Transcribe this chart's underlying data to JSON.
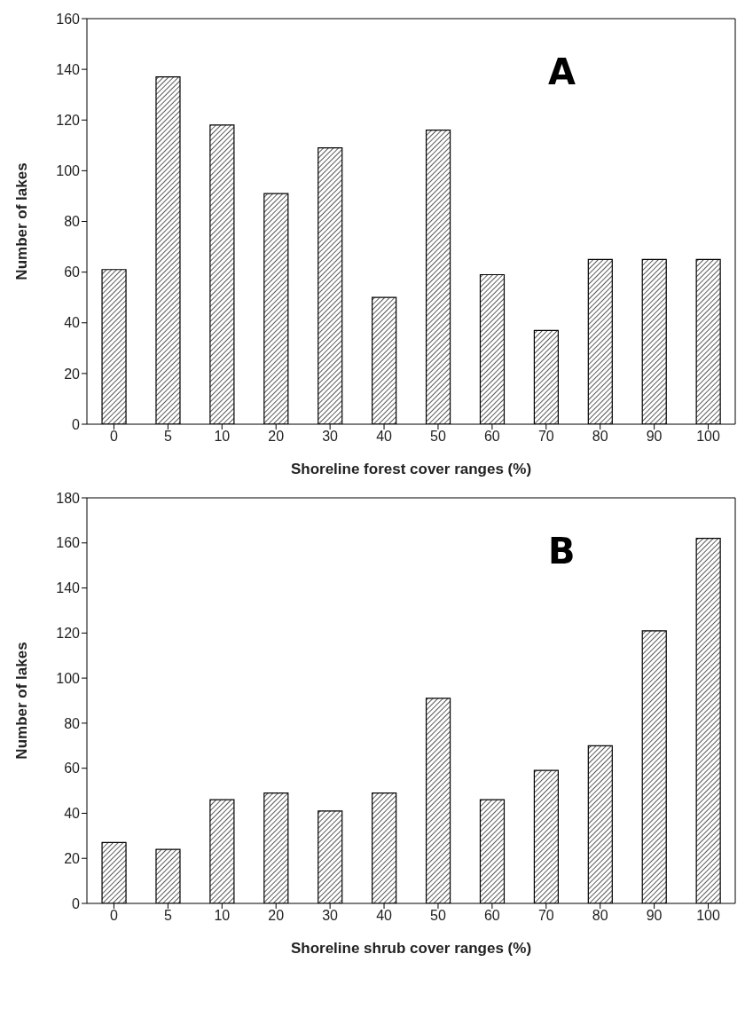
{
  "chart_data": [
    {
      "type": "bar",
      "xlabel": "Shoreline forest cover ranges (%)",
      "ylabel": "Number of lakes",
      "annotations": [
        "A"
      ],
      "categories": [
        "0",
        "5",
        "10",
        "20",
        "30",
        "40",
        "50",
        "60",
        "70",
        "80",
        "90",
        "100"
      ],
      "values": [
        61,
        137,
        118,
        91,
        109,
        50,
        116,
        59,
        37,
        65,
        65,
        65
      ],
      "color": "#000000",
      "ylim": [
        0,
        160
      ],
      "yticks": [
        0,
        20,
        40,
        60,
        80,
        100,
        120,
        140,
        160
      ],
      "grid": false,
      "legend": false
    },
    {
      "type": "bar",
      "xlabel": "Shoreline shrub cover ranges (%)",
      "ylabel": "Number of lakes",
      "annotations": [
        "B"
      ],
      "categories": [
        "0",
        "5",
        "10",
        "20",
        "30",
        "40",
        "50",
        "60",
        "70",
        "80",
        "90",
        "100"
      ],
      "values": [
        27,
        24,
        46,
        49,
        41,
        49,
        91,
        46,
        59,
        70,
        121,
        162
      ],
      "color": "#000000",
      "ylim": [
        0,
        180
      ],
      "yticks": [
        0,
        20,
        40,
        60,
        80,
        100,
        120,
        140,
        160,
        180
      ],
      "grid": false,
      "legend": false
    }
  ]
}
